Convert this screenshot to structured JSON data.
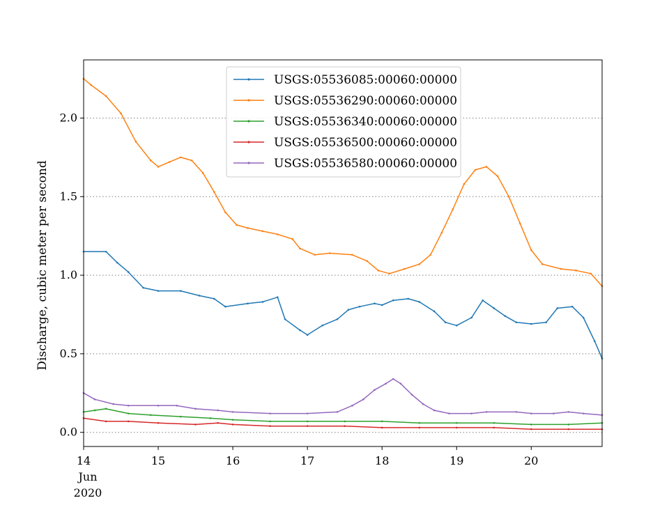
{
  "chart_data": {
    "type": "line",
    "title": "",
    "xlabel": "",
    "ylabel": "Discharge, cubic meter per second",
    "x_ticks": [
      {
        "x": 14,
        "label": "14"
      },
      {
        "x": 15,
        "label": "15"
      },
      {
        "x": 16,
        "label": "16"
      },
      {
        "x": 17,
        "label": "17"
      },
      {
        "x": 18,
        "label": "18"
      },
      {
        "x": 19,
        "label": "19"
      },
      {
        "x": 20,
        "label": "20"
      }
    ],
    "x_subticks": {
      "month": "Jun",
      "year": "2020"
    },
    "xlim": [
      14,
      20.95
    ],
    "ylim": [
      -0.09,
      2.37
    ],
    "y_ticks": [
      0.0,
      0.5,
      1.0,
      1.5,
      2.0
    ],
    "y_tick_labels": [
      "0.0",
      "0.5",
      "1.0",
      "1.5",
      "2.0"
    ],
    "grid": {
      "y": true,
      "x": false,
      "style": "dotted"
    },
    "legend_position": "upper center",
    "x_unit": "day of June 2020",
    "series": [
      {
        "name": "USGS:05536085:00060:00000",
        "color": "#1f77b4",
        "points": [
          [
            14.0,
            1.15
          ],
          [
            14.3,
            1.15
          ],
          [
            14.45,
            1.08
          ],
          [
            14.6,
            1.02
          ],
          [
            14.8,
            0.92
          ],
          [
            15.0,
            0.9
          ],
          [
            15.3,
            0.9
          ],
          [
            15.55,
            0.87
          ],
          [
            15.75,
            0.85
          ],
          [
            15.9,
            0.8
          ],
          [
            16.2,
            0.82
          ],
          [
            16.4,
            0.83
          ],
          [
            16.6,
            0.86
          ],
          [
            16.7,
            0.72
          ],
          [
            16.9,
            0.65
          ],
          [
            17.0,
            0.62
          ],
          [
            17.2,
            0.68
          ],
          [
            17.4,
            0.72
          ],
          [
            17.55,
            0.78
          ],
          [
            17.7,
            0.8
          ],
          [
            17.9,
            0.82
          ],
          [
            18.0,
            0.81
          ],
          [
            18.15,
            0.84
          ],
          [
            18.35,
            0.85
          ],
          [
            18.5,
            0.83
          ],
          [
            18.7,
            0.77
          ],
          [
            18.85,
            0.7
          ],
          [
            19.0,
            0.68
          ],
          [
            19.2,
            0.73
          ],
          [
            19.35,
            0.84
          ],
          [
            19.5,
            0.79
          ],
          [
            19.65,
            0.74
          ],
          [
            19.8,
            0.7
          ],
          [
            20.0,
            0.69
          ],
          [
            20.2,
            0.7
          ],
          [
            20.35,
            0.79
          ],
          [
            20.55,
            0.8
          ],
          [
            20.7,
            0.73
          ],
          [
            20.85,
            0.58
          ],
          [
            20.95,
            0.47
          ]
        ]
      },
      {
        "name": "USGS:05536290:00060:00000",
        "color": "#ff7f0e",
        "points": [
          [
            14.0,
            2.25
          ],
          [
            14.1,
            2.21
          ],
          [
            14.3,
            2.14
          ],
          [
            14.5,
            2.03
          ],
          [
            14.7,
            1.85
          ],
          [
            14.9,
            1.73
          ],
          [
            15.0,
            1.69
          ],
          [
            15.15,
            1.72
          ],
          [
            15.3,
            1.75
          ],
          [
            15.45,
            1.73
          ],
          [
            15.6,
            1.65
          ],
          [
            15.75,
            1.53
          ],
          [
            15.9,
            1.4
          ],
          [
            16.05,
            1.32
          ],
          [
            16.2,
            1.3
          ],
          [
            16.4,
            1.28
          ],
          [
            16.6,
            1.26
          ],
          [
            16.8,
            1.23
          ],
          [
            16.9,
            1.17
          ],
          [
            17.1,
            1.13
          ],
          [
            17.3,
            1.14
          ],
          [
            17.6,
            1.13
          ],
          [
            17.8,
            1.09
          ],
          [
            17.95,
            1.03
          ],
          [
            18.1,
            1.01
          ],
          [
            18.3,
            1.04
          ],
          [
            18.5,
            1.07
          ],
          [
            18.65,
            1.13
          ],
          [
            18.8,
            1.27
          ],
          [
            18.95,
            1.42
          ],
          [
            19.1,
            1.58
          ],
          [
            19.25,
            1.67
          ],
          [
            19.4,
            1.69
          ],
          [
            19.55,
            1.63
          ],
          [
            19.7,
            1.5
          ],
          [
            19.85,
            1.33
          ],
          [
            20.0,
            1.16
          ],
          [
            20.15,
            1.07
          ],
          [
            20.4,
            1.04
          ],
          [
            20.6,
            1.03
          ],
          [
            20.8,
            1.01
          ],
          [
            20.95,
            0.93
          ]
        ]
      },
      {
        "name": "USGS:05536340:00060:00000",
        "color": "#2ca02c",
        "points": [
          [
            14.0,
            0.13
          ],
          [
            14.15,
            0.14
          ],
          [
            14.3,
            0.15
          ],
          [
            14.6,
            0.12
          ],
          [
            14.9,
            0.11
          ],
          [
            15.3,
            0.1
          ],
          [
            15.7,
            0.09
          ],
          [
            16.0,
            0.08
          ],
          [
            16.5,
            0.07
          ],
          [
            17.0,
            0.07
          ],
          [
            17.5,
            0.07
          ],
          [
            18.0,
            0.07
          ],
          [
            18.5,
            0.06
          ],
          [
            19.0,
            0.06
          ],
          [
            19.5,
            0.06
          ],
          [
            20.0,
            0.05
          ],
          [
            20.5,
            0.05
          ],
          [
            20.95,
            0.06
          ]
        ]
      },
      {
        "name": "USGS:05536500:00060:00000",
        "color": "#d62728",
        "points": [
          [
            14.0,
            0.09
          ],
          [
            14.3,
            0.07
          ],
          [
            14.6,
            0.07
          ],
          [
            15.0,
            0.06
          ],
          [
            15.5,
            0.05
          ],
          [
            15.8,
            0.06
          ],
          [
            16.0,
            0.05
          ],
          [
            16.5,
            0.04
          ],
          [
            17.0,
            0.04
          ],
          [
            17.5,
            0.04
          ],
          [
            18.0,
            0.03
          ],
          [
            18.5,
            0.03
          ],
          [
            19.0,
            0.03
          ],
          [
            19.5,
            0.03
          ],
          [
            20.0,
            0.02
          ],
          [
            20.5,
            0.02
          ],
          [
            20.95,
            0.02
          ]
        ]
      },
      {
        "name": "USGS:05536580:00060:00000",
        "color": "#9467bd",
        "points": [
          [
            14.0,
            0.25
          ],
          [
            14.15,
            0.21
          ],
          [
            14.4,
            0.18
          ],
          [
            14.6,
            0.17
          ],
          [
            15.0,
            0.17
          ],
          [
            15.25,
            0.17
          ],
          [
            15.5,
            0.15
          ],
          [
            15.8,
            0.14
          ],
          [
            16.0,
            0.13
          ],
          [
            16.5,
            0.12
          ],
          [
            17.0,
            0.12
          ],
          [
            17.4,
            0.13
          ],
          [
            17.6,
            0.17
          ],
          [
            17.75,
            0.21
          ],
          [
            17.9,
            0.27
          ],
          [
            18.05,
            0.31
          ],
          [
            18.15,
            0.34
          ],
          [
            18.25,
            0.31
          ],
          [
            18.4,
            0.24
          ],
          [
            18.55,
            0.18
          ],
          [
            18.7,
            0.14
          ],
          [
            18.9,
            0.12
          ],
          [
            19.2,
            0.12
          ],
          [
            19.4,
            0.13
          ],
          [
            19.8,
            0.13
          ],
          [
            20.0,
            0.12
          ],
          [
            20.3,
            0.12
          ],
          [
            20.5,
            0.13
          ],
          [
            20.7,
            0.12
          ],
          [
            20.95,
            0.11
          ]
        ]
      }
    ]
  }
}
